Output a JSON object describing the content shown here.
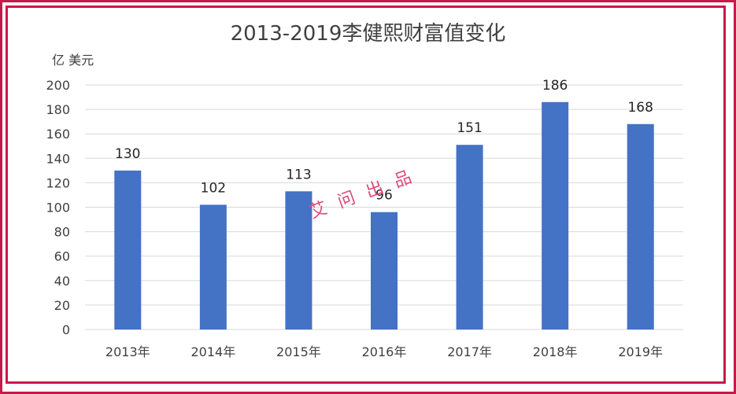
{
  "chart_data": {
    "type": "bar",
    "title": "2013-2019李健熙财富值变化",
    "unit": "亿 美元",
    "categories": [
      "2013年",
      "2014年",
      "2015年",
      "2016年",
      "2017年",
      "2018年",
      "2019年"
    ],
    "values": [
      130,
      102,
      113,
      96,
      151,
      186,
      168
    ],
    "ylim": [
      0,
      200
    ],
    "yticks": [
      0,
      20,
      40,
      60,
      80,
      100,
      120,
      140,
      160,
      180,
      200
    ],
    "grid": true,
    "bar_color": "#4472c4"
  },
  "watermark": "艾问出品",
  "colors": {
    "frame": "#c8194b",
    "grid": "#d9d9d9",
    "text": "#404040"
  }
}
